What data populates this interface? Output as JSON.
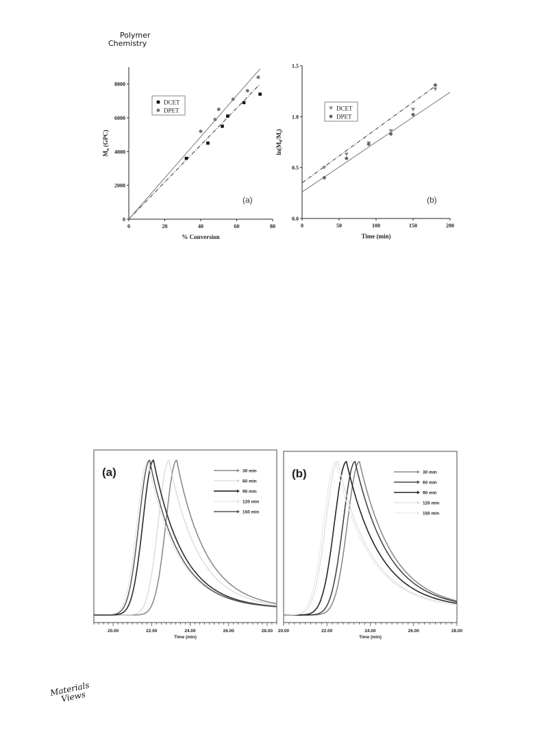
{
  "header": {
    "journal_line1": "Polymer",
    "journal_line2": "Chemistry"
  },
  "footer": {
    "logo_line1": "Materials",
    "logo_line2": "Views"
  },
  "chart_data": [
    {
      "id": "fig-top-a",
      "type": "scatter",
      "panel_label": "(a)",
      "xlabel": "% Conversion",
      "ylabel": "M_n (GPC)",
      "xlim": [
        0,
        80
      ],
      "ylim": [
        0,
        9000
      ],
      "xticks": [
        0,
        20,
        40,
        60,
        80
      ],
      "yticks": [
        0,
        2000,
        4000,
        6000,
        8000
      ],
      "legend_position": "top-left",
      "series": [
        {
          "name": "DCET",
          "marker": "square",
          "color": "#111111",
          "x": [
            32,
            44,
            52,
            55,
            64,
            73
          ],
          "y": [
            3600,
            4500,
            5500,
            6100,
            6900,
            7400
          ],
          "fit": {
            "style": "dashdot",
            "x": [
              0,
              73
            ],
            "y": [
              0,
              8000
            ]
          }
        },
        {
          "name": "DPET",
          "marker": "circle",
          "color": "#777777",
          "x": [
            40,
            48,
            50,
            58,
            66,
            72
          ],
          "y": [
            5200,
            5900,
            6500,
            7100,
            7600,
            8400
          ],
          "fit": {
            "style": "solid",
            "x": [
              0,
              73
            ],
            "y": [
              0,
              8900
            ]
          }
        }
      ]
    },
    {
      "id": "fig-top-b",
      "type": "scatter",
      "panel_label": "(b)",
      "xlabel": "Time (min)",
      "ylabel": "ln(M0/Mt)",
      "xlim": [
        0,
        200
      ],
      "ylim": [
        0,
        1.5
      ],
      "xticks": [
        0,
        50,
        100,
        150,
        200
      ],
      "yticks": [
        0.0,
        0.5,
        1.0,
        1.5
      ],
      "legend_position": "top-left",
      "series": [
        {
          "name": "DCET",
          "marker": "triangle-down",
          "color": "#888888",
          "x": [
            30,
            60,
            90,
            120,
            150,
            180
          ],
          "y": [
            0.5,
            0.63,
            0.74,
            0.86,
            1.07,
            1.27
          ],
          "fit": {
            "style": "dashdot",
            "x": [
              0,
              180
            ],
            "y": [
              0.35,
              1.3
            ]
          }
        },
        {
          "name": "DPET",
          "marker": "circle",
          "color": "#666666",
          "x": [
            30,
            60,
            90,
            120,
            150,
            180
          ],
          "y": [
            0.4,
            0.59,
            0.73,
            0.83,
            1.02,
            1.31
          ],
          "fit": {
            "style": "solid",
            "x": [
              0,
              200
            ],
            "y": [
              0.26,
              1.24
            ]
          }
        }
      ]
    },
    {
      "id": "fig-bottom-a",
      "type": "line",
      "panel_label": "(a)",
      "xlabel": "Time (min)",
      "xlim": [
        19,
        28.5
      ],
      "xticks": [
        20,
        22,
        24,
        26,
        28
      ],
      "xticklabels": [
        "20.00",
        "22.00",
        "24.00",
        "26.00",
        "28.00"
      ],
      "legend_position": "top-right",
      "series": [
        {
          "name": "30 min",
          "peak": 23.3,
          "color": "#8a8a8a",
          "width": 1.6
        },
        {
          "name": "60 min",
          "peak": 22.9,
          "color": "#d2d2d2",
          "width": 1.1
        },
        {
          "name": "90 min",
          "peak": 22.1,
          "color": "#333333",
          "width": 1.7
        },
        {
          "name": "120 min",
          "peak": 21.8,
          "color": "#e2e2e2",
          "width": 1.1
        },
        {
          "name": "150 min",
          "peak": 21.9,
          "color": "#555555",
          "width": 1.5
        }
      ]
    },
    {
      "id": "fig-bottom-b",
      "type": "line",
      "panel_label": "(b)",
      "xlabel": "Time (min)",
      "xlim": [
        20,
        28
      ],
      "xticks": [
        20,
        22,
        24,
        26,
        28
      ],
      "xticklabels": [
        "20.00",
        "22.00",
        "24.00",
        "26.00",
        "28.00"
      ],
      "legend_position": "top-right",
      "series": [
        {
          "name": "30 min",
          "peak": 23.5,
          "color": "#8a8a8a",
          "width": 1.6
        },
        {
          "name": "60 min",
          "peak": 23.3,
          "color": "#444444",
          "width": 1.6
        },
        {
          "name": "90 min",
          "peak": 22.9,
          "color": "#222222",
          "width": 1.6
        },
        {
          "name": "120 min",
          "peak": 22.5,
          "color": "#d8d8d8",
          "width": 1.1
        },
        {
          "name": "150 min",
          "peak": 22.4,
          "color": "#e6e6e6",
          "width": 1.1
        }
      ]
    }
  ]
}
